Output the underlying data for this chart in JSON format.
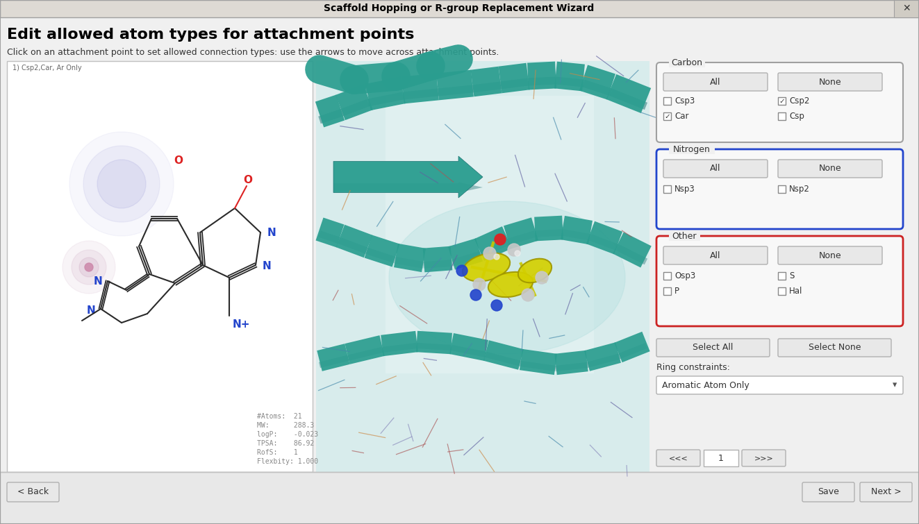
{
  "title": "Scaffold Hopping or R-group Replacement Wizard",
  "heading": "Edit allowed atom types for attachment points",
  "subtext": "Click on an attachment point to set allowed connection types: use the arrows to move across attachment points.",
  "bg_color": "#f0f0f0",
  "title_bar_bg": "#e0ddd8",
  "carbon_group": {
    "label": "Carbon",
    "buttons": [
      "All",
      "None"
    ],
    "checkboxes": [
      {
        "label": "Csp3",
        "checked": false,
        "col": 0
      },
      {
        "label": "Csp2",
        "checked": true,
        "col": 1
      },
      {
        "label": "Car",
        "checked": true,
        "col": 0
      },
      {
        "label": "Csp",
        "checked": false,
        "col": 1
      }
    ],
    "border_color": "#a0a0a0"
  },
  "nitrogen_group": {
    "label": "Nitrogen",
    "buttons": [
      "All",
      "None"
    ],
    "checkboxes": [
      {
        "label": "Nsp3",
        "checked": false,
        "col": 0
      },
      {
        "label": "Nsp2",
        "checked": false,
        "col": 1
      }
    ],
    "border_color": "#2244cc"
  },
  "other_group": {
    "label": "Other",
    "buttons": [
      "All",
      "None"
    ],
    "checkboxes": [
      {
        "label": "Osp3",
        "checked": false,
        "col": 0
      },
      {
        "label": "S",
        "checked": false,
        "col": 1
      },
      {
        "label": "P",
        "checked": false,
        "col": 0
      },
      {
        "label": "Hal",
        "checked": false,
        "col": 1
      }
    ],
    "border_color": "#cc2222"
  },
  "select_buttons": [
    "Select All",
    "Select None"
  ],
  "ring_constraints_label": "Ring constraints:",
  "ring_constraints_value": "Aromatic Atom Only",
  "nav_buttons": [
    "<<<",
    "1",
    ">>>"
  ],
  "bottom_left": "< Back",
  "bottom_right": [
    "Save",
    "Next >"
  ],
  "mol_info_lines": [
    "#Atoms:  21",
    "MW:      288.3",
    "logP:    -0.023",
    "TPSA:    86.92",
    "RofS:    1",
    "Flexbity: 1.000"
  ],
  "label_small": "1) Csp2,Car, Ar Only",
  "teal": "#2a9d8f",
  "teal_light": "#7ecece",
  "teal_dark": "#1a7070",
  "teal_mid": "#4db8b0",
  "panel_3d_bg": "#d0e8e8"
}
